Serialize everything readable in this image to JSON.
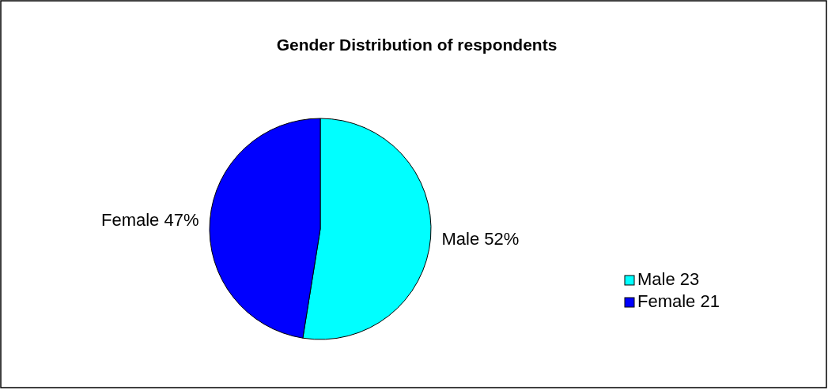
{
  "chart_data": {
    "type": "pie",
    "title": "Gender Distribution of respondents",
    "categories": [
      "Male 23",
      "Female 21"
    ],
    "values": [
      52,
      47
    ],
    "colors": [
      "#00ffff",
      "#0000ff"
    ],
    "value_labels": [
      "Male 52%",
      "Female 47%"
    ],
    "legend": "right"
  }
}
